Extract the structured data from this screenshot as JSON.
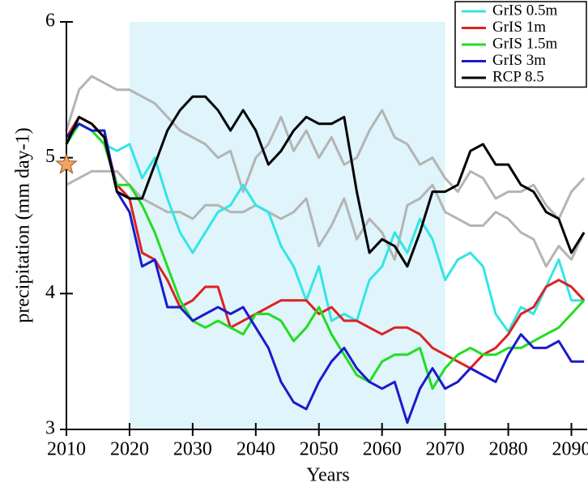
{
  "chart_data": {
    "type": "line",
    "xlabel": "Years",
    "ylabel": "precipitation (mm day-1)",
    "x": [
      2010,
      2012,
      2014,
      2016,
      2018,
      2020,
      2022,
      2024,
      2026,
      2028,
      2030,
      2032,
      2034,
      2036,
      2038,
      2040,
      2042,
      2044,
      2046,
      2048,
      2050,
      2052,
      2054,
      2056,
      2058,
      2060,
      2062,
      2064,
      2066,
      2068,
      2070,
      2072,
      2074,
      2076,
      2078,
      2080,
      2082,
      2084,
      2086,
      2088,
      2090,
      2092
    ],
    "series": [
      {
        "color": "#b4b4b4",
        "values": [
          5.2,
          5.5,
          5.6,
          5.55,
          5.5,
          5.5,
          5.45,
          5.4,
          5.3,
          5.2,
          5.15,
          5.1,
          5.0,
          5.05,
          4.75,
          5.0,
          5.1,
          5.3,
          5.05,
          5.2,
          5.0,
          5.15,
          4.95,
          5.0,
          5.2,
          5.35,
          5.15,
          5.1,
          4.95,
          5.0,
          4.85,
          4.75,
          4.9,
          4.85,
          4.7,
          4.75,
          4.75,
          4.8,
          4.65,
          4.55,
          4.75,
          4.85
        ]
      },
      {
        "color": "#b4b4b4",
        "values": [
          4.8,
          4.85,
          4.9,
          4.9,
          4.9,
          4.8,
          4.7,
          4.65,
          4.6,
          4.6,
          4.55,
          4.65,
          4.65,
          4.6,
          4.6,
          4.65,
          4.6,
          4.55,
          4.6,
          4.7,
          4.35,
          4.5,
          4.7,
          4.4,
          4.55,
          4.45,
          4.25,
          4.65,
          4.7,
          4.8,
          4.6,
          4.55,
          4.5,
          4.5,
          4.6,
          4.55,
          4.45,
          4.4,
          4.2,
          4.35,
          4.25,
          4.45
        ]
      },
      {
        "name": "GrIS 0.5m",
        "color": "#33e5e5",
        "values": [
          5.15,
          5.25,
          5.2,
          5.1,
          5.05,
          5.1,
          4.85,
          5.0,
          4.7,
          4.45,
          4.3,
          4.45,
          4.6,
          4.65,
          4.8,
          4.65,
          4.6,
          4.35,
          4.2,
          3.95,
          4.2,
          3.8,
          3.85,
          3.8,
          4.1,
          4.2,
          4.45,
          4.3,
          4.55,
          4.4,
          4.1,
          4.25,
          4.3,
          4.2,
          3.85,
          3.72,
          3.9,
          3.85,
          4.05,
          4.25,
          3.95,
          3.95
        ]
      },
      {
        "name": "GrIS 1m",
        "color": "#dd2222",
        "values": [
          5.15,
          5.3,
          5.25,
          5.15,
          4.8,
          4.7,
          4.3,
          4.25,
          4.1,
          3.9,
          3.95,
          4.05,
          4.05,
          3.75,
          3.8,
          3.85,
          3.9,
          3.95,
          3.95,
          3.95,
          3.85,
          3.9,
          3.8,
          3.8,
          3.75,
          3.7,
          3.75,
          3.75,
          3.7,
          3.6,
          3.55,
          3.5,
          3.45,
          3.55,
          3.6,
          3.7,
          3.85,
          3.9,
          4.05,
          4.1,
          4.05,
          3.95
        ]
      },
      {
        "name": "GrIS 1.5m",
        "color": "#22dd22",
        "values": [
          5.1,
          5.25,
          5.2,
          5.1,
          4.8,
          4.8,
          4.65,
          4.45,
          4.2,
          3.95,
          3.8,
          3.75,
          3.8,
          3.75,
          3.7,
          3.85,
          3.85,
          3.8,
          3.65,
          3.75,
          3.9,
          3.7,
          3.55,
          3.4,
          3.35,
          3.5,
          3.55,
          3.55,
          3.6,
          3.3,
          3.45,
          3.55,
          3.6,
          3.55,
          3.55,
          3.6,
          3.6,
          3.65,
          3.7,
          3.75,
          3.85,
          3.95
        ]
      },
      {
        "name": "GrIS 3m",
        "color": "#1a1acc",
        "values": [
          5.15,
          5.25,
          5.2,
          5.2,
          4.75,
          4.6,
          4.2,
          4.25,
          3.9,
          3.9,
          3.8,
          3.85,
          3.9,
          3.85,
          3.9,
          3.75,
          3.6,
          3.35,
          3.2,
          3.15,
          3.35,
          3.5,
          3.6,
          3.45,
          3.35,
          3.3,
          3.35,
          3.05,
          3.3,
          3.45,
          3.3,
          3.35,
          3.45,
          3.4,
          3.35,
          3.55,
          3.7,
          3.6,
          3.6,
          3.65,
          3.5,
          3.5
        ]
      },
      {
        "name": "RCP 8.5",
        "color": "#000000",
        "values": [
          5.1,
          5.3,
          5.25,
          5.15,
          4.75,
          4.7,
          4.7,
          4.95,
          5.2,
          5.35,
          5.45,
          5.45,
          5.35,
          5.2,
          5.35,
          5.2,
          4.95,
          5.05,
          5.2,
          5.3,
          5.25,
          5.25,
          5.3,
          4.75,
          4.3,
          4.4,
          4.35,
          4.2,
          4.45,
          4.75,
          4.75,
          4.8,
          5.05,
          5.1,
          4.95,
          4.95,
          4.8,
          4.75,
          4.6,
          4.55,
          4.3,
          4.45
        ]
      }
    ],
    "shade": [
      2020,
      2070
    ],
    "shade_color": "#dff4fb",
    "marker": {
      "x": 2010,
      "y": 4.95,
      "color": "#f4a460"
    },
    "xlim": [
      2010,
      2092.5
    ],
    "ylim": [
      3,
      6
    ],
    "xticks": [
      2010,
      2020,
      2030,
      2040,
      2050,
      2060,
      2070,
      2080,
      2090
    ],
    "yticks": [
      3,
      4,
      5,
      6
    ]
  }
}
